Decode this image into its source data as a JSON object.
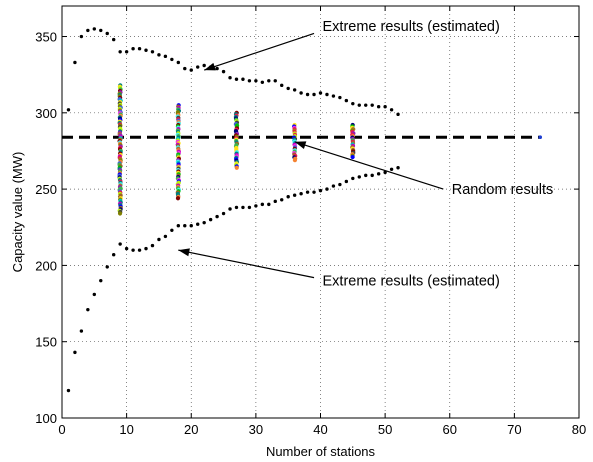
{
  "chart_data": {
    "type": "scatter",
    "title": "",
    "xlabel": "Number of stations",
    "ylabel": "Capacity value (MW)",
    "xlim": [
      0,
      80
    ],
    "ylim": [
      100,
      370
    ],
    "xticks": [
      "0",
      "10",
      "20",
      "30",
      "40",
      "50",
      "60",
      "70",
      "80"
    ],
    "yticks": [
      "100",
      "150",
      "200",
      "250",
      "300",
      "350"
    ],
    "grid": true,
    "legend": "none",
    "reference_line": {
      "y": 284,
      "x_range": [
        0,
        74
      ],
      "style": "dashed",
      "color": "#000000"
    },
    "series": [
      {
        "color": "#000000",
        "x": [
          1,
          2,
          3,
          4,
          5,
          6,
          7,
          8,
          9,
          10,
          11,
          12,
          13,
          14,
          15,
          16,
          17,
          18,
          19,
          20,
          21,
          22,
          23,
          24,
          25,
          26,
          27,
          28,
          29,
          30,
          31,
          32,
          33,
          34,
          35,
          36,
          37,
          38,
          39,
          40,
          41,
          42,
          43,
          44,
          45,
          46,
          47,
          48,
          49,
          50,
          51,
          52
        ],
        "y": [
          302,
          333,
          350,
          354,
          355,
          354,
          352,
          348,
          340,
          340,
          342,
          342,
          341,
          340,
          338,
          337,
          335,
          333,
          329,
          328,
          330,
          331,
          330,
          329,
          327,
          323,
          322,
          322,
          321,
          321,
          320,
          321,
          321,
          318,
          316,
          315,
          313,
          312,
          312,
          313,
          312,
          311,
          310,
          308,
          306,
          305,
          305,
          305,
          304,
          304,
          302,
          299
        ]
      },
      {
        "color": "#000000",
        "x": [
          1,
          2,
          3,
          4,
          5,
          6,
          7,
          8,
          9,
          10,
          11,
          12,
          13,
          14,
          15,
          16,
          17,
          18,
          19,
          20,
          21,
          22,
          23,
          24,
          25,
          26,
          27,
          28,
          29,
          30,
          31,
          32,
          33,
          34,
          35,
          36,
          37,
          38,
          39,
          40,
          41,
          42,
          43,
          44,
          45,
          46,
          47,
          48,
          49,
          50,
          51,
          52
        ],
        "y": [
          118,
          143,
          157,
          171,
          181,
          190,
          199,
          207,
          214,
          211,
          210,
          210,
          211,
          213,
          217,
          219,
          223,
          226,
          226,
          226,
          227,
          228,
          230,
          232,
          234,
          237,
          238,
          238,
          238,
          239,
          240,
          240,
          242,
          243,
          245,
          246,
          247,
          248,
          248,
          249,
          250,
          252,
          253,
          255,
          257,
          258,
          259,
          259,
          260,
          261,
          263,
          264
        ]
      }
    ],
    "random_columns": [
      {
        "x": 9,
        "y_min": 234,
        "y_max": 318
      },
      {
        "x": 18,
        "y_min": 244,
        "y_max": 305
      },
      {
        "x": 27,
        "y_min": 264,
        "y_max": 300
      },
      {
        "x": 36,
        "y_min": 269,
        "y_max": 292
      },
      {
        "x": 45,
        "y_min": 271,
        "y_max": 292
      }
    ],
    "extra_points": [
      {
        "x": 74,
        "y": 284,
        "color": "#1f3fd0"
      }
    ],
    "annotations": [
      {
        "text": "Extreme results (estimated)",
        "text_x": 40,
        "text_y": 357,
        "arrow_from": [
          39,
          352
        ],
        "arrow_to": [
          22,
          328
        ]
      },
      {
        "text": "Random results",
        "text_x": 60,
        "text_y": 250,
        "arrow_from": [
          59,
          250
        ],
        "arrow_to": [
          36,
          281
        ]
      },
      {
        "text": "Extreme results (estimated)",
        "text_x": 40,
        "text_y": 190,
        "arrow_from": [
          39,
          192
        ],
        "arrow_to": [
          18,
          210
        ]
      }
    ]
  }
}
